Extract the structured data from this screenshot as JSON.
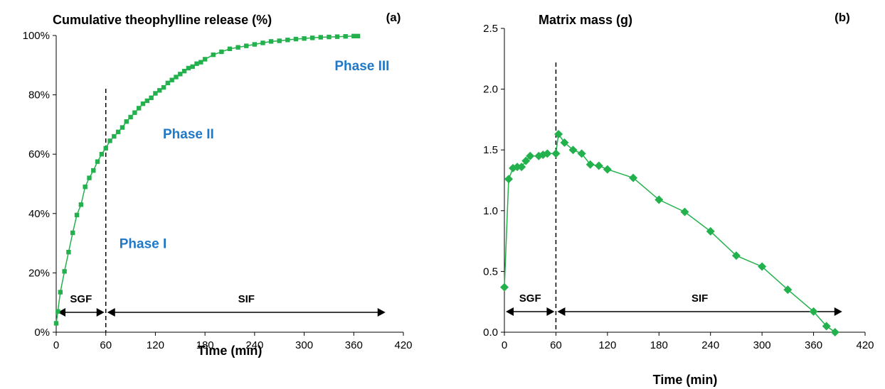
{
  "chart_data": [
    {
      "panel": "(a)",
      "type": "line",
      "title": "Cumulative theophylline release (%)",
      "xlabel": "Time (min)",
      "ylabel": "",
      "xlim": [
        0,
        420
      ],
      "ylim": [
        0,
        100
      ],
      "xticks": [
        0,
        60,
        120,
        180,
        240,
        300,
        360,
        420
      ],
      "yticks": [
        "0%",
        "20%",
        "40%",
        "60%",
        "80%",
        "100%"
      ],
      "grid": false,
      "series": [
        {
          "marker": "square",
          "color": "#22b14c",
          "x": [
            0,
            2,
            5,
            10,
            15,
            20,
            25,
            30,
            35,
            40,
            45,
            50,
            55,
            60,
            65,
            70,
            75,
            80,
            85,
            90,
            95,
            100,
            105,
            110,
            115,
            120,
            125,
            130,
            135,
            140,
            145,
            150,
            155,
            160,
            165,
            170,
            175,
            180,
            190,
            200,
            210,
            220,
            230,
            240,
            250,
            260,
            270,
            280,
            290,
            300,
            310,
            320,
            330,
            340,
            350,
            360,
            365
          ],
          "y": [
            3,
            7,
            13.5,
            20.5,
            27,
            33.5,
            39.5,
            43,
            49,
            52,
            54.5,
            57.5,
            60,
            62,
            64.5,
            66,
            67.5,
            69,
            71,
            72.5,
            74,
            75.5,
            77,
            78,
            79,
            80.5,
            81.5,
            82.5,
            84,
            85,
            86,
            87,
            88,
            89,
            89.5,
            90.5,
            91,
            92,
            93.5,
            94.5,
            95.5,
            96,
            96.5,
            97,
            97.5,
            98,
            98.2,
            98.5,
            98.8,
            99,
            99.2,
            99.4,
            99.5,
            99.6,
            99.7,
            99.8,
            99.8
          ]
        }
      ],
      "divider_x": 60,
      "regions": [
        {
          "label": "SGF",
          "from": 0,
          "to": 60
        },
        {
          "label": "SIF",
          "from": 60,
          "to": 400
        }
      ],
      "phase_labels": [
        {
          "label": "Phase I",
          "x": 105,
          "y": 30
        },
        {
          "label": "Phase II",
          "x": 160,
          "y": 67
        },
        {
          "label": "Phase III",
          "x": 370,
          "y": 90
        }
      ]
    },
    {
      "panel": "(b)",
      "type": "line",
      "title": "Matrix mass (g)",
      "xlabel": "Time (min)",
      "ylabel": "",
      "xlim": [
        0,
        420
      ],
      "ylim": [
        0,
        2.5
      ],
      "xticks": [
        0,
        60,
        120,
        180,
        240,
        300,
        360,
        420
      ],
      "yticks": [
        "0.0",
        "0.5",
        "1.0",
        "1.5",
        "2.0",
        "2.5"
      ],
      "grid": false,
      "series": [
        {
          "marker": "diamond",
          "color": "#22b14c",
          "x": [
            0,
            5,
            10,
            15,
            20,
            25,
            30,
            40,
            45,
            50,
            60,
            63,
            70,
            80,
            90,
            100,
            110,
            120,
            150,
            180,
            210,
            240,
            270,
            300,
            330,
            360,
            375,
            385
          ],
          "y": [
            0.37,
            1.26,
            1.35,
            1.36,
            1.36,
            1.41,
            1.45,
            1.45,
            1.46,
            1.47,
            1.47,
            1.63,
            1.56,
            1.5,
            1.47,
            1.38,
            1.37,
            1.34,
            1.27,
            1.09,
            0.99,
            0.83,
            0.63,
            0.54,
            0.35,
            0.17,
            0.05,
            0.0
          ]
        }
      ],
      "divider_x": 60,
      "regions": [
        {
          "label": "SGF",
          "from": 0,
          "to": 60
        },
        {
          "label": "SIF",
          "from": 60,
          "to": 395
        }
      ]
    }
  ]
}
